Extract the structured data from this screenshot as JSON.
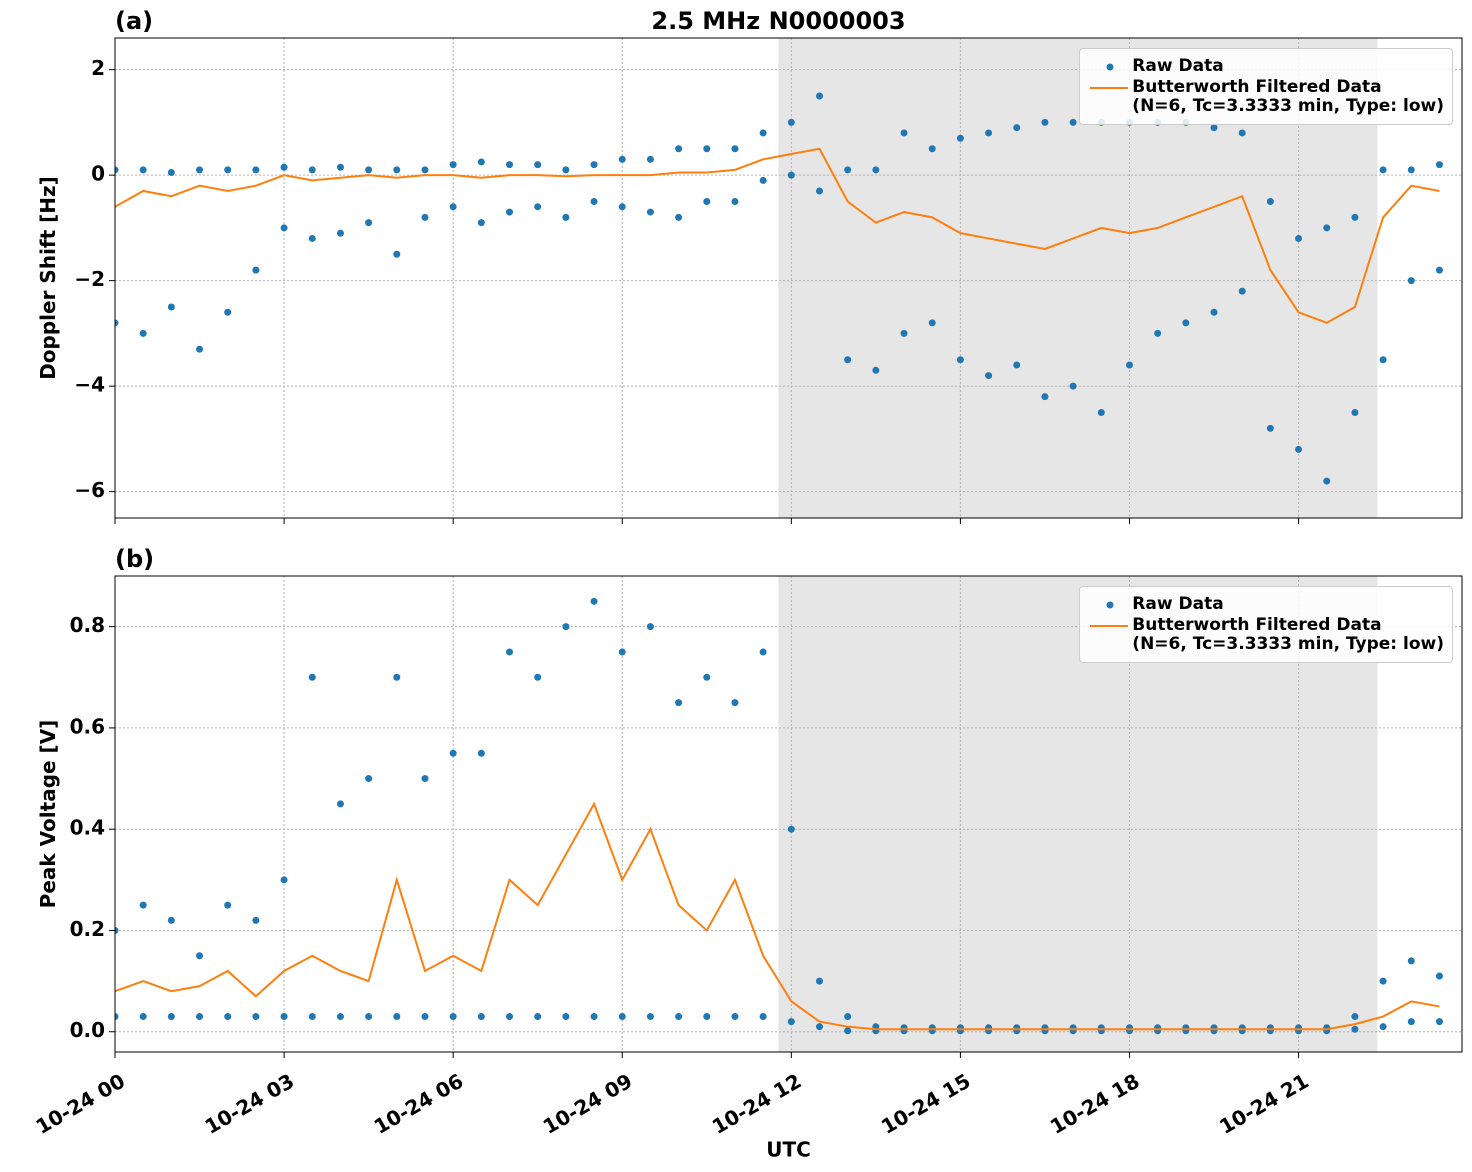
{
  "chart_data": [
    {
      "type": "line",
      "label": "(a)",
      "title": "2.5 MHz N0000003",
      "ylabel": "Doppler Shift [Hz]",
      "xlim": [
        0,
        23.9
      ],
      "ylim": [
        -6.5,
        2.6
      ],
      "shaded_region": [
        11.77,
        22.4
      ],
      "grid": true,
      "legend": "upper right",
      "xticks": [
        0,
        3,
        6,
        9,
        12,
        15,
        18,
        21
      ],
      "yticks": [
        {
          "value": -6,
          "label": "−6"
        },
        {
          "value": -4,
          "label": "−4"
        },
        {
          "value": -2,
          "label": "−2"
        },
        0,
        2
      ],
      "series": [
        {
          "name": "Raw Data",
          "type": "scatter",
          "color": "#1f77b4",
          "x": [
            0,
            0.5,
            1,
            1.5,
            2,
            2.5,
            3,
            3.5,
            4,
            4.5,
            5,
            5.5,
            6,
            6.5,
            7,
            7.5,
            8,
            8.5,
            9,
            9.5,
            10,
            10.5,
            11,
            11.5,
            12,
            12.5,
            13,
            13.5,
            14,
            14.5,
            15,
            15.5,
            16,
            16.5,
            17,
            17.5,
            18,
            18.5,
            19,
            19.5,
            20,
            20.5,
            21,
            21.5,
            22,
            22.5,
            23,
            23.5,
            0,
            0.5,
            1,
            1.5,
            2,
            2.5,
            3,
            3.5,
            4,
            4.5,
            5,
            5.5,
            6,
            6.5,
            7,
            7.5,
            8,
            8.5,
            9,
            9.5,
            10,
            10.5,
            11,
            11.5,
            12,
            12.5,
            13,
            13.5,
            14,
            14.5,
            15,
            15.5,
            16,
            16.5,
            17,
            17.5,
            18,
            18.5,
            19,
            19.5,
            20,
            20.5,
            21,
            21.5,
            22,
            22.5,
            23,
            23.5
          ],
          "values": [
            0.1,
            0.1,
            0.05,
            0.1,
            0.1,
            0.1,
            0.15,
            0.1,
            0.15,
            0.1,
            0.1,
            0.1,
            0.2,
            0.25,
            0.2,
            0.2,
            0.1,
            0.2,
            0.3,
            0.3,
            0.5,
            0.5,
            0.5,
            0.8,
            1.0,
            1.5,
            0.1,
            0.1,
            0.8,
            0.5,
            0.7,
            0.8,
            0.9,
            1.0,
            1.0,
            1.0,
            1.0,
            1.0,
            1.0,
            0.9,
            0.8,
            -0.5,
            -1.2,
            -1.0,
            -0.8,
            0.1,
            0.1,
            0.2,
            -2.8,
            -3.0,
            -2.5,
            -3.3,
            -2.6,
            -1.8,
            -1.0,
            -1.2,
            -1.1,
            -0.9,
            -1.5,
            -0.8,
            -0.6,
            -0.9,
            -0.7,
            -0.6,
            -0.8,
            -0.5,
            -0.6,
            -0.7,
            -0.8,
            -0.5,
            -0.5,
            -0.1,
            0.0,
            -0.3,
            -3.5,
            -3.7,
            -3.0,
            -2.8,
            -3.5,
            -3.8,
            -3.6,
            -4.2,
            -4.0,
            -4.5,
            -3.6,
            -3.0,
            -2.8,
            -2.6,
            -2.2,
            -4.8,
            -5.2,
            -5.8,
            -4.5,
            -3.5,
            -2.0,
            -1.8
          ]
        },
        {
          "name": "Butterworth Filtered Data\n(N=6, Tc=3.3333 min, Type: low)",
          "type": "line",
          "color": "#ff7f0e",
          "x": [
            0,
            0.5,
            1,
            1.5,
            2,
            2.5,
            3,
            3.5,
            4,
            4.5,
            5,
            5.5,
            6,
            6.5,
            7,
            7.5,
            8,
            8.5,
            9,
            9.5,
            10,
            10.5,
            11,
            11.5,
            12,
            12.5,
            13,
            13.5,
            14,
            14.5,
            15,
            15.5,
            16,
            16.5,
            17,
            17.5,
            18,
            18.5,
            19,
            19.5,
            20,
            20.5,
            21,
            21.5,
            22,
            22.5,
            23,
            23.5
          ],
          "values": [
            -0.6,
            -0.3,
            -0.4,
            -0.2,
            -0.3,
            -0.2,
            0.0,
            -0.1,
            -0.05,
            0,
            -0.05,
            0,
            0,
            -0.05,
            0,
            0,
            -0.02,
            0,
            0,
            0,
            0.05,
            0.05,
            0.1,
            0.3,
            0.4,
            0.5,
            -0.5,
            -0.9,
            -0.7,
            -0.8,
            -1.1,
            -1.2,
            -1.3,
            -1.4,
            -1.2,
            -1.0,
            -1.1,
            -1.0,
            -0.8,
            -0.6,
            -0.4,
            -1.8,
            -2.6,
            -2.8,
            -2.5,
            -0.8,
            -0.2,
            -0.3
          ]
        }
      ]
    },
    {
      "type": "line",
      "label": "(b)",
      "ylabel": "Peak Voltage [V]",
      "xlabel": "UTC",
      "xlim": [
        0,
        23.9
      ],
      "ylim": [
        -0.04,
        0.9
      ],
      "shaded_region": [
        11.77,
        22.4
      ],
      "grid": true,
      "legend": "upper right",
      "xticks": [
        {
          "value": 0,
          "label": "10-24 00"
        },
        {
          "value": 3,
          "label": "10-24 03"
        },
        {
          "value": 6,
          "label": "10-24 06"
        },
        {
          "value": 9,
          "label": "10-24 09"
        },
        {
          "value": 12,
          "label": "10-24 12"
        },
        {
          "value": 15,
          "label": "10-24 15"
        },
        {
          "value": 18,
          "label": "10-24 18"
        },
        {
          "value": 21,
          "label": "10-24 21"
        }
      ],
      "yticks": [
        {
          "value": 0,
          "label": "0.0"
        },
        0.2,
        0.4,
        0.6,
        0.8
      ],
      "series": [
        {
          "name": "Raw Data",
          "type": "scatter",
          "color": "#1f77b4",
          "x": [
            0,
            0.5,
            1,
            1.5,
            2,
            2.5,
            3,
            3.5,
            4,
            4.5,
            5,
            5.5,
            6,
            6.5,
            7,
            7.5,
            8,
            8.5,
            9,
            9.5,
            10,
            10.5,
            11,
            11.5,
            12,
            12.5,
            13,
            13.5,
            14,
            14.5,
            15,
            15.5,
            16,
            16.5,
            17,
            17.5,
            18,
            18.5,
            19,
            19.5,
            20,
            20.5,
            21,
            21.5,
            22,
            22.5,
            23,
            23.5,
            0,
            0.5,
            1,
            1.5,
            2,
            2.5,
            3,
            3.5,
            4,
            4.5,
            5,
            5.5,
            6,
            6.5,
            7,
            7.5,
            8,
            8.5,
            9,
            9.5,
            10,
            10.5,
            11,
            11.5,
            12,
            12.5,
            13,
            13.5,
            14,
            14.5,
            15,
            15.5,
            16,
            16.5,
            17,
            17.5,
            18,
            18.5,
            19,
            19.5,
            20,
            20.5,
            21,
            21.5,
            22,
            22.5,
            23,
            23.5
          ],
          "values": [
            0.2,
            0.25,
            0.22,
            0.15,
            0.25,
            0.22,
            0.3,
            0.7,
            0.45,
            0.5,
            0.7,
            0.5,
            0.55,
            0.55,
            0.75,
            0.7,
            0.8,
            0.85,
            0.75,
            0.8,
            0.65,
            0.7,
            0.65,
            0.75,
            0.4,
            0.1,
            0.03,
            0.01,
            0.008,
            0.008,
            0.008,
            0.008,
            0.008,
            0.008,
            0.008,
            0.008,
            0.008,
            0.008,
            0.008,
            0.008,
            0.008,
            0.008,
            0.008,
            0.008,
            0.03,
            0.1,
            0.14,
            0.11,
            0.03,
            0.03,
            0.03,
            0.03,
            0.03,
            0.03,
            0.03,
            0.03,
            0.03,
            0.03,
            0.03,
            0.03,
            0.03,
            0.03,
            0.03,
            0.03,
            0.03,
            0.03,
            0.03,
            0.03,
            0.03,
            0.03,
            0.03,
            0.03,
            0.02,
            0.01,
            0.002,
            0.002,
            0.002,
            0.002,
            0.002,
            0.002,
            0.002,
            0.002,
            0.002,
            0.002,
            0.002,
            0.002,
            0.002,
            0.002,
            0.002,
            0.002,
            0.002,
            0.002,
            0.005,
            0.01,
            0.02,
            0.02
          ]
        },
        {
          "name": "Butterworth Filtered Data\n(N=6, Tc=3.3333 min, Type: low)",
          "type": "line",
          "color": "#ff7f0e",
          "x": [
            0,
            0.5,
            1,
            1.5,
            2,
            2.5,
            3,
            3.5,
            4,
            4.5,
            5,
            5.5,
            6,
            6.5,
            7,
            7.5,
            8,
            8.5,
            9,
            9.5,
            10,
            10.5,
            11,
            11.5,
            12,
            12.5,
            13,
            13.5,
            14,
            14.5,
            15,
            15.5,
            16,
            16.5,
            17,
            17.5,
            18,
            18.5,
            19,
            19.5,
            20,
            20.5,
            21,
            21.5,
            22,
            22.5,
            23,
            23.5
          ],
          "values": [
            0.08,
            0.1,
            0.08,
            0.09,
            0.12,
            0.07,
            0.12,
            0.15,
            0.12,
            0.1,
            0.3,
            0.12,
            0.15,
            0.12,
            0.3,
            0.25,
            0.35,
            0.45,
            0.3,
            0.4,
            0.25,
            0.2,
            0.3,
            0.15,
            0.06,
            0.02,
            0.01,
            0.005,
            0.005,
            0.005,
            0.005,
            0.005,
            0.005,
            0.005,
            0.005,
            0.005,
            0.005,
            0.005,
            0.005,
            0.005,
            0.005,
            0.005,
            0.005,
            0.005,
            0.015,
            0.03,
            0.06,
            0.05
          ]
        }
      ]
    }
  ]
}
